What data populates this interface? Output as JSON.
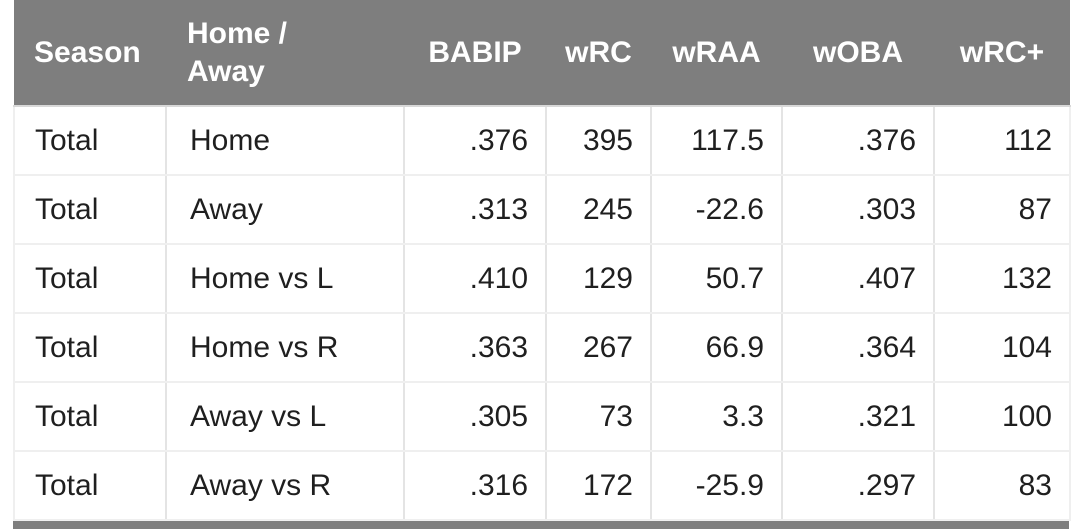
{
  "table": {
    "name": "batting-splits-table",
    "columns": [
      {
        "label": "Season"
      },
      {
        "label": "Home / Away"
      },
      {
        "label": "BABIP"
      },
      {
        "label": "wRC"
      },
      {
        "label": "wRAA"
      },
      {
        "label": "wOBA"
      },
      {
        "label": "wRC+"
      }
    ],
    "rows": [
      [
        "Total",
        "Home",
        ".376",
        "395",
        "117.5",
        ".376",
        "112"
      ],
      [
        "Total",
        "Away",
        ".313",
        "245",
        "-22.6",
        ".303",
        "87"
      ],
      [
        "Total",
        "Home vs L",
        ".410",
        "129",
        "50.7",
        ".407",
        "132"
      ],
      [
        "Total",
        "Home vs R",
        ".363",
        "267",
        "66.9",
        ".364",
        "104"
      ],
      [
        "Total",
        "Away vs L",
        ".305",
        "73",
        "3.3",
        ".321",
        "100"
      ],
      [
        "Total",
        "Away vs R",
        ".316",
        "172",
        "-25.9",
        ".297",
        "83"
      ]
    ]
  },
  "colors": {
    "header_bg": "#7e7e7e",
    "header_text": "#ffffff",
    "body_text": "#1f1f1f",
    "grid_vertical": "#e4e4e4",
    "grid_horizontal": "#efefef",
    "page_bg": "#ffffff"
  },
  "bottom_bar": {
    "description": "top edge of next table header, cut off at screen bottom"
  }
}
